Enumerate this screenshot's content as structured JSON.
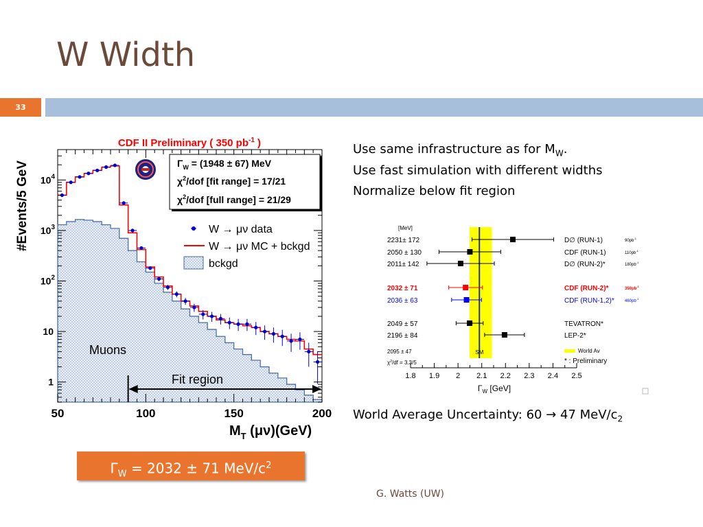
{
  "slide": {
    "title": "W Width",
    "number": "33",
    "bullets": [
      "Use same infrastructure as for M",
      "Use fast simulation with different widths",
      "Normalize below fit region"
    ],
    "bullet1_sub": "W",
    "bullet1_end": ".",
    "world_avg": "World Average Uncertainty: 60 → 47 MeV/c",
    "world_avg_sub": "2",
    "result_main": "Γ",
    "result_sub": "W",
    "result_rest": " = 2032 ± 71 MeV/c",
    "result_sup": "2",
    "author": "G. Watts (UW)"
  },
  "colors": {
    "title": "#6b4a3a",
    "accent": "#e8742e",
    "bar": "#a7bfda",
    "fit_red": "#ff0000",
    "data_blue": "#0000cc",
    "world_avg_yellow": "#ffff00"
  },
  "chart_data": [
    {
      "type": "histogram",
      "title": "CDF II Preliminary ( 350 pb",
      "title_sup": "-1",
      "title_end": " )",
      "ylabel": "#Events/5 GeV",
      "xlabel": "M",
      "xlabel_sub": "T",
      "xlabel_rest": " (μν)(GeV)",
      "xlim": [
        50,
        200
      ],
      "ylog": true,
      "ylim": [
        0.4,
        40000
      ],
      "xticks": [
        "50",
        "100",
        "150",
        "200"
      ],
      "yticks": [
        {
          "v": 1,
          "base": "1",
          "exp": ""
        },
        {
          "v": 10,
          "base": "10",
          "exp": ""
        },
        {
          "v": 100,
          "base": "10",
          "exp": "2"
        },
        {
          "v": 1000,
          "base": "10",
          "exp": "3"
        },
        {
          "v": 10000,
          "base": "10",
          "exp": "4"
        }
      ],
      "bin_edges": [
        50,
        55,
        60,
        65,
        70,
        75,
        80,
        85,
        90,
        95,
        100,
        105,
        110,
        115,
        120,
        125,
        130,
        135,
        140,
        145,
        150,
        155,
        160,
        165,
        170,
        175,
        180,
        185,
        190,
        195,
        200
      ],
      "data": [
        5000,
        9000,
        11500,
        13500,
        15500,
        18000,
        19500,
        3500,
        1000,
        450,
        180,
        110,
        75,
        55,
        40,
        30,
        22,
        20,
        18,
        15,
        14,
        14,
        12,
        10,
        9,
        8,
        6.5,
        7,
        4,
        2.5
      ],
      "mc_bckgd": [
        5000,
        9000,
        11500,
        13500,
        15500,
        18000,
        19000,
        3200,
        900,
        420,
        190,
        120,
        80,
        55,
        40,
        32,
        25,
        20,
        17,
        15,
        14,
        13,
        12,
        10,
        9,
        8,
        7,
        6.5,
        4.5,
        3.5
      ],
      "bckgd": [
        1300,
        1500,
        1650,
        1600,
        1500,
        1300,
        1100,
        700,
        400,
        240,
        150,
        90,
        60,
        40,
        28,
        20,
        15,
        11,
        8,
        6,
        4.5,
        3.5,
        2.7,
        2.0,
        1.5,
        1.2,
        0.9,
        0.7,
        0.55,
        0.45
      ],
      "stats": [
        {
          "label": "Γ",
          "sub": "W",
          "val": "  = (1948 ± 67) MeV"
        },
        {
          "label": "χ",
          "sup": "2",
          "val": "/dof [fit range]    = 17/21"
        },
        {
          "label": "χ",
          "sup": "2",
          "val": "/dof [full range] = 21/29"
        }
      ],
      "legend": [
        {
          "marker": "point",
          "label": "W → μν data"
        },
        {
          "marker": "line",
          "label": "W → μν MC + bckgd"
        },
        {
          "marker": "fill",
          "label": "bckgd"
        }
      ],
      "annotations": [
        "Muons",
        "Fit region"
      ],
      "fit_region": [
        90,
        200
      ]
    },
    {
      "type": "scatter",
      "xlabel": "Γ",
      "xlabel_sub": "W",
      "xlabel_rest": " [GeV]",
      "xlim": [
        1.8,
        2.5
      ],
      "xticks": [
        "1.8",
        "1.9",
        "2",
        "2.1",
        "2.2",
        "2.3",
        "2.4",
        "2.5"
      ],
      "header": "[MeV]",
      "sm_label": "SM",
      "sm_value": 2.09,
      "world_avg_band": [
        2.049,
        2.143
      ],
      "points": [
        {
          "label": "2231± 172",
          "value": 2.231,
          "err": 0.172,
          "exp": "D∅ (RUN-1)",
          "lumi": "90pb",
          "color": "#000000",
          "bold": false
        },
        {
          "label": "2050 ± 130",
          "value": 2.05,
          "err": 0.13,
          "exp": "CDF (RUN-1)",
          "lumi": "110pb",
          "color": "#000000",
          "bold": false
        },
        {
          "label": "2011± 142",
          "value": 2.011,
          "err": 0.142,
          "exp": "D∅ (RUN-2)*",
          "lumi": "180pb",
          "color": "#000000",
          "bold": false
        },
        {
          "label": "2032 ± 71",
          "value": 2.032,
          "err": 0.071,
          "exp": "CDF (RUN-2)*",
          "lumi": "350pb",
          "color": "#ff0000",
          "bold": true
        },
        {
          "label": "2036 ± 63",
          "value": 2.036,
          "err": 0.063,
          "exp": "CDF (RUN-1,2)*",
          "lumi": "460pb",
          "color": "#0000ff",
          "bold": false
        },
        {
          "label": "2049 ± 57",
          "value": 2.049,
          "err": 0.057,
          "exp": "TEVATRON*",
          "lumi": "",
          "color": "#000000",
          "bold": false
        },
        {
          "label": "2196 ± 84",
          "value": 2.196,
          "err": 0.084,
          "exp": "LEP-2*",
          "lumi": "",
          "color": "#000000",
          "bold": false
        }
      ],
      "world_avg_row": {
        "label": "2095 ± 47",
        "legend": "World Av"
      },
      "chi2": "χ",
      "chi2_rest": "/df = 3.3/5",
      "footnote": "* : Preliminary",
      "lumi_sup": "-1"
    }
  ]
}
